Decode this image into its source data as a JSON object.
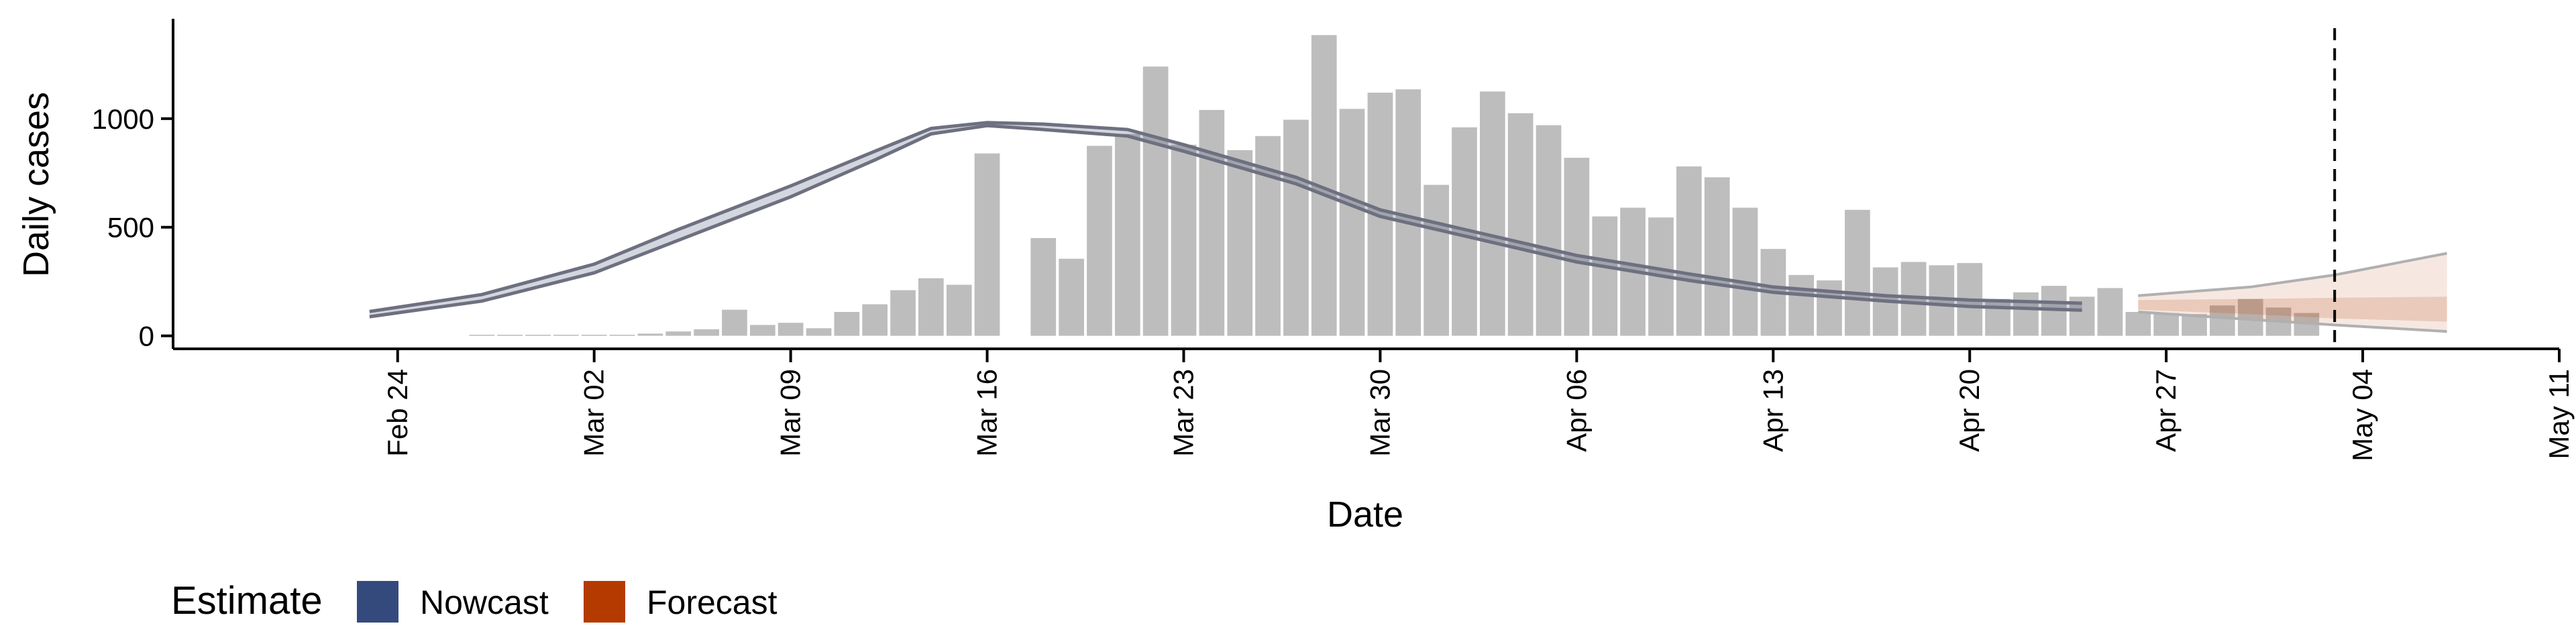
{
  "chart_data": {
    "type": "bar",
    "xlabel": "Date",
    "ylabel": "Daily cases",
    "ylim": [
      -60,
      1460
    ],
    "yticks": [
      0,
      500,
      1000
    ],
    "xlim": [
      "2020-02-16",
      "2020-05-11"
    ],
    "xticks": [
      {
        "date": "2020-02-24",
        "label": "Feb 24"
      },
      {
        "date": "2020-03-02",
        "label": "Mar 02"
      },
      {
        "date": "2020-03-09",
        "label": "Mar 09"
      },
      {
        "date": "2020-03-16",
        "label": "Mar 16"
      },
      {
        "date": "2020-03-23",
        "label": "Mar 23"
      },
      {
        "date": "2020-03-30",
        "label": "Mar 30"
      },
      {
        "date": "2020-04-06",
        "label": "Apr 06"
      },
      {
        "date": "2020-04-13",
        "label": "Apr 13"
      },
      {
        "date": "2020-04-20",
        "label": "Apr 20"
      },
      {
        "date": "2020-04-27",
        "label": "Apr 27"
      },
      {
        "date": "2020-05-04",
        "label": "May 04"
      },
      {
        "date": "2020-05-11",
        "label": "May 11"
      }
    ],
    "bars": {
      "start_date": "2020-02-21",
      "values": [
        0,
        0,
        0,
        0,
        0,
        0,
        5,
        5,
        5,
        5,
        5,
        5,
        10,
        20,
        30,
        120,
        50,
        60,
        35,
        110,
        145,
        210,
        265,
        235,
        840,
        0,
        450,
        355,
        875,
        930,
        1240,
        880,
        1040,
        855,
        920,
        995,
        1385,
        1045,
        1120,
        1135,
        695,
        960,
        1125,
        1025,
        970,
        820,
        550,
        590,
        545,
        780,
        730,
        590,
        400,
        280,
        255,
        580,
        315,
        340,
        325,
        335,
        170,
        200,
        230,
        180,
        220,
        110,
        105,
        100,
        140,
        170,
        130,
        105
      ]
    },
    "series": [
      {
        "name": "Nowcast",
        "type": "band",
        "color": "#4a5a7a",
        "lower": [
          {
            "date": "2020-02-23",
            "y": 88
          },
          {
            "date": "2020-02-27",
            "y": 160
          },
          {
            "date": "2020-03-02",
            "y": 290
          },
          {
            "date": "2020-03-05",
            "y": 440
          },
          {
            "date": "2020-03-09",
            "y": 640
          },
          {
            "date": "2020-03-12",
            "y": 810
          },
          {
            "date": "2020-03-14",
            "y": 930
          },
          {
            "date": "2020-03-16",
            "y": 968
          },
          {
            "date": "2020-03-18",
            "y": 950
          },
          {
            "date": "2020-03-21",
            "y": 920
          },
          {
            "date": "2020-03-23",
            "y": 850
          },
          {
            "date": "2020-03-27",
            "y": 700
          },
          {
            "date": "2020-03-30",
            "y": 550
          },
          {
            "date": "2020-04-02",
            "y": 460
          },
          {
            "date": "2020-04-06",
            "y": 340
          },
          {
            "date": "2020-04-10",
            "y": 255
          },
          {
            "date": "2020-04-13",
            "y": 200
          },
          {
            "date": "2020-04-17",
            "y": 160
          },
          {
            "date": "2020-04-20",
            "y": 135
          },
          {
            "date": "2020-04-24",
            "y": 118
          }
        ],
        "upper": [
          {
            "date": "2020-02-23",
            "y": 112
          },
          {
            "date": "2020-02-27",
            "y": 190
          },
          {
            "date": "2020-03-02",
            "y": 330
          },
          {
            "date": "2020-03-05",
            "y": 490
          },
          {
            "date": "2020-03-09",
            "y": 690
          },
          {
            "date": "2020-03-12",
            "y": 850
          },
          {
            "date": "2020-03-14",
            "y": 955
          },
          {
            "date": "2020-03-16",
            "y": 982
          },
          {
            "date": "2020-03-18",
            "y": 975
          },
          {
            "date": "2020-03-21",
            "y": 950
          },
          {
            "date": "2020-03-23",
            "y": 880
          },
          {
            "date": "2020-03-27",
            "y": 730
          },
          {
            "date": "2020-03-30",
            "y": 580
          },
          {
            "date": "2020-04-02",
            "y": 490
          },
          {
            "date": "2020-04-06",
            "y": 370
          },
          {
            "date": "2020-04-10",
            "y": 285
          },
          {
            "date": "2020-04-13",
            "y": 225
          },
          {
            "date": "2020-04-17",
            "y": 185
          },
          {
            "date": "2020-04-20",
            "y": 165
          },
          {
            "date": "2020-04-24",
            "y": 150
          }
        ]
      },
      {
        "name": "Forecast",
        "type": "band",
        "color": "#b5400a",
        "lower": [
          {
            "date": "2020-04-26",
            "y": 110
          },
          {
            "date": "2020-04-30",
            "y": 75
          },
          {
            "date": "2020-05-03",
            "y": 50
          },
          {
            "date": "2020-05-07",
            "y": 20
          }
        ],
        "upper": [
          {
            "date": "2020-04-26",
            "y": 185
          },
          {
            "date": "2020-04-30",
            "y": 225
          },
          {
            "date": "2020-05-03",
            "y": 280
          },
          {
            "date": "2020-05-07",
            "y": 380
          }
        ],
        "inner_lower": [
          {
            "date": "2020-04-26",
            "y": 120
          },
          {
            "date": "2020-04-30",
            "y": 100
          },
          {
            "date": "2020-05-03",
            "y": 80
          },
          {
            "date": "2020-05-07",
            "y": 65
          }
        ],
        "inner_upper": [
          {
            "date": "2020-04-26",
            "y": 165
          },
          {
            "date": "2020-04-30",
            "y": 170
          },
          {
            "date": "2020-05-03",
            "y": 175
          },
          {
            "date": "2020-05-07",
            "y": 180
          }
        ]
      }
    ],
    "vline": {
      "date": "2020-05-03",
      "style": "dashed"
    },
    "legend": {
      "title": "Estimate",
      "placement": "bottom-left",
      "entries": [
        {
          "label": "Nowcast",
          "color": "#344a7c"
        },
        {
          "label": "Forecast",
          "color": "#b53a00"
        }
      ]
    },
    "colors": {
      "bar": "#bdbdbd",
      "line": "#6e7080"
    }
  }
}
